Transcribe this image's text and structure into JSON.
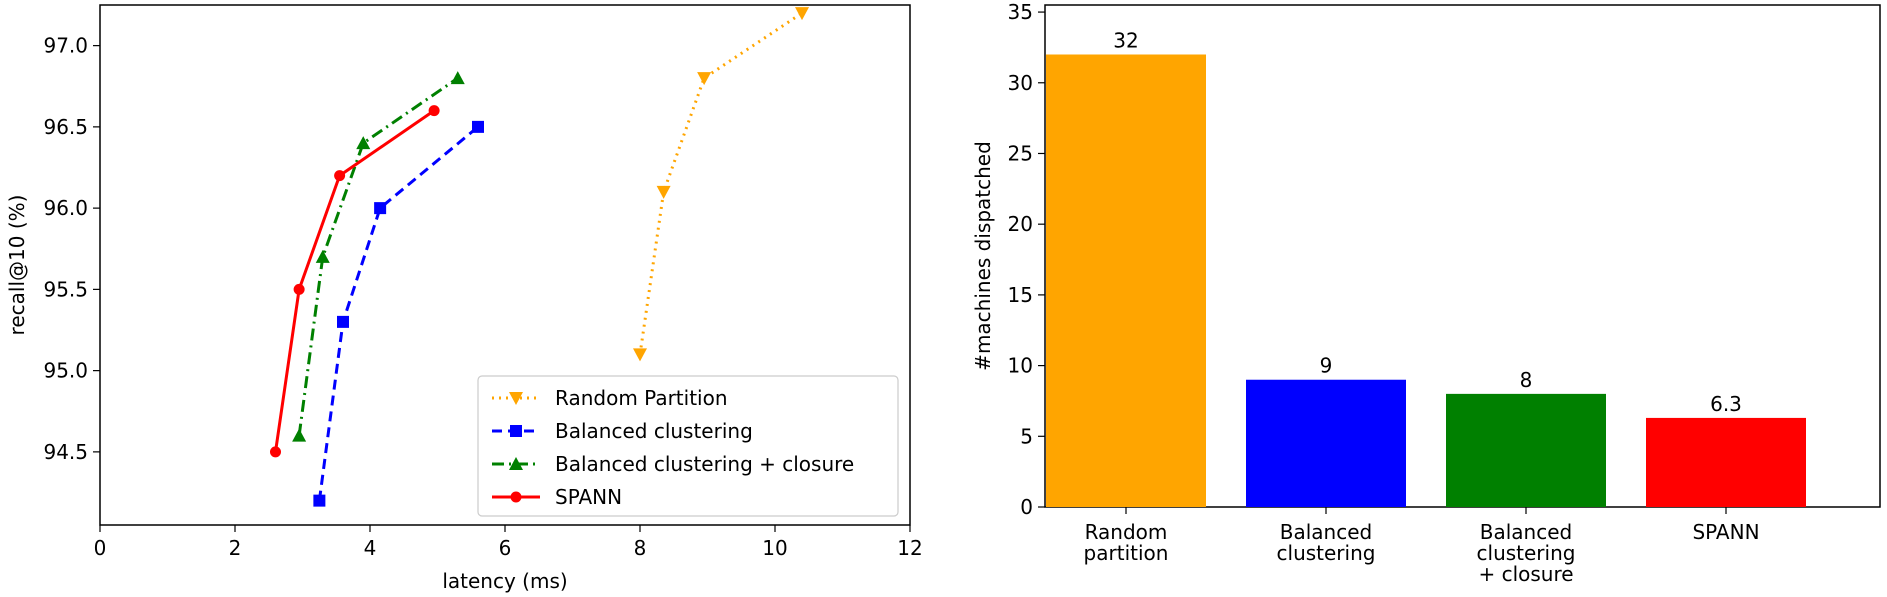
{
  "chart_data": [
    {
      "type": "line",
      "title": "",
      "xlabel": "latency (ms)",
      "ylabel": "recall@10 (%)",
      "xlim": [
        0,
        12
      ],
      "ylim": [
        94.05,
        97.25
      ],
      "xticks": [
        "0",
        "2",
        "4",
        "6",
        "8",
        "10",
        "12"
      ],
      "yticks": [
        "94.5",
        "95.0",
        "95.5",
        "96.0",
        "96.5",
        "97.0"
      ],
      "grid": false,
      "legend_position": "lower-right",
      "series": [
        {
          "name": "Random Partition",
          "color": "#FFA500",
          "style": "dotted",
          "marker": "triangle-down",
          "x": [
            8.0,
            8.35,
            8.95,
            10.4
          ],
          "y": [
            95.1,
            96.1,
            96.8,
            97.2
          ]
        },
        {
          "name": "Balanced clustering",
          "color": "#0000FF",
          "style": "dashed",
          "marker": "square",
          "x": [
            3.25,
            3.6,
            4.15,
            5.6
          ],
          "y": [
            94.2,
            95.3,
            96.0,
            96.5
          ]
        },
        {
          "name": "Balanced clustering + closure",
          "color": "#008000",
          "style": "dashdot",
          "marker": "triangle-up",
          "x": [
            2.95,
            3.3,
            3.9,
            5.3
          ],
          "y": [
            94.6,
            95.7,
            96.4,
            96.8
          ]
        },
        {
          "name": "SPANN",
          "color": "#FF0000",
          "style": "solid",
          "marker": "circle",
          "x": [
            2.6,
            2.95,
            3.55,
            4.95
          ],
          "y": [
            94.5,
            95.5,
            96.2,
            96.6
          ]
        }
      ]
    },
    {
      "type": "bar",
      "title": "",
      "xlabel": "",
      "ylabel": "#machines dispatched",
      "ylim": [
        0,
        35.5
      ],
      "yticks": [
        "0",
        "5",
        "10",
        "15",
        "20",
        "25",
        "30",
        "35"
      ],
      "grid": false,
      "categories": [
        [
          "Random",
          "partition"
        ],
        [
          "Balanced",
          "clustering"
        ],
        [
          "Balanced",
          "clustering",
          "+ closure"
        ],
        [
          "SPANN"
        ]
      ],
      "values": [
        32,
        9,
        8,
        6.3
      ],
      "value_labels": [
        "32",
        "9",
        "8",
        "6.3"
      ],
      "colors": [
        "#FFA500",
        "#0000FF",
        "#008000",
        "#FF0000"
      ]
    }
  ]
}
